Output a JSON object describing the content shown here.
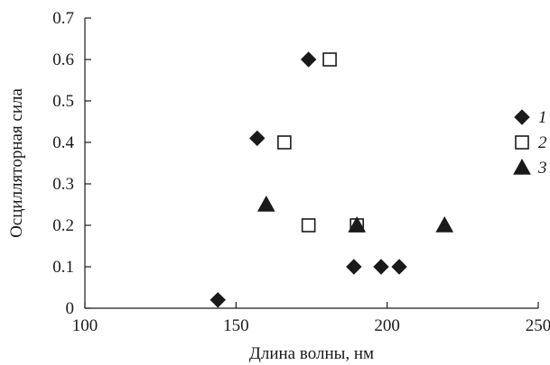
{
  "chart_data": {
    "type": "scatter",
    "title": "",
    "xlabel": "Длина волны, нм",
    "ylabel": "Осцилляторная сила",
    "xlim": [
      100,
      250
    ],
    "ylim": [
      0,
      0.7
    ],
    "x_ticks": [
      "100",
      "150",
      "200",
      "250"
    ],
    "y_ticks": [
      "0",
      "0.1",
      "0.2",
      "0.3",
      "0.4",
      "0.5",
      "0.6",
      "0.7"
    ],
    "x_tick_values": [
      100,
      150,
      200,
      250
    ],
    "y_tick_values": [
      0,
      0.1,
      0.2,
      0.3,
      0.4,
      0.5,
      0.6,
      0.7
    ],
    "grid": false,
    "legend_position": "right",
    "series": [
      {
        "name": "1",
        "marker": "diamond-filled",
        "color": "#1a1a1a",
        "points": [
          [
            144,
            0.02
          ],
          [
            157,
            0.41
          ],
          [
            174,
            0.6
          ],
          [
            189,
            0.1
          ],
          [
            198,
            0.1
          ],
          [
            204,
            0.1
          ]
        ]
      },
      {
        "name": "2",
        "marker": "square-open",
        "color": "#1a1a1a",
        "points": [
          [
            166,
            0.4
          ],
          [
            174,
            0.2
          ],
          [
            181,
            0.6
          ],
          [
            190,
            0.2
          ]
        ]
      },
      {
        "name": "3",
        "marker": "triangle-filled",
        "color": "#1a1a1a",
        "points": [
          [
            160,
            0.25
          ],
          [
            190,
            0.2
          ],
          [
            219,
            0.2
          ]
        ]
      }
    ]
  }
}
